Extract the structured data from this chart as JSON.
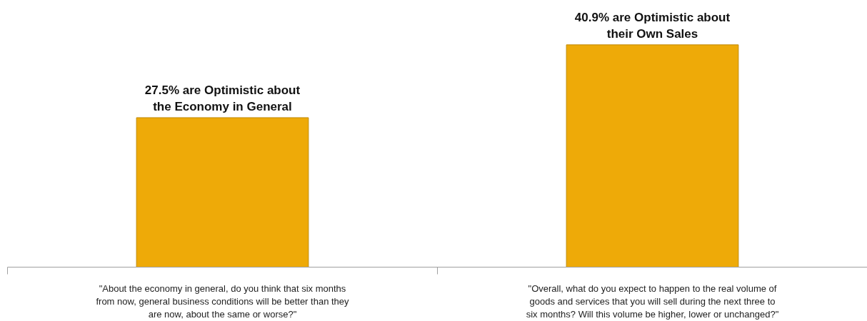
{
  "chart_data": {
    "type": "bar",
    "categories": [
      "\"About the economy in general, do you think that six months from now, general business conditions will be better than they are now, about the same or worse?\"",
      "\"Overall, what do you expect to happen to the real volume of goods and services that you will sell during the next three to six months? Will this volume be higher, lower or unchanged?\""
    ],
    "values": [
      27.5,
      40.9
    ],
    "value_labels": [
      "27.5% are Optimistic about the Economy in General",
      "40.9% are Optimistic about their Own Sales"
    ],
    "color": "#eeaa08",
    "grid": false
  }
}
